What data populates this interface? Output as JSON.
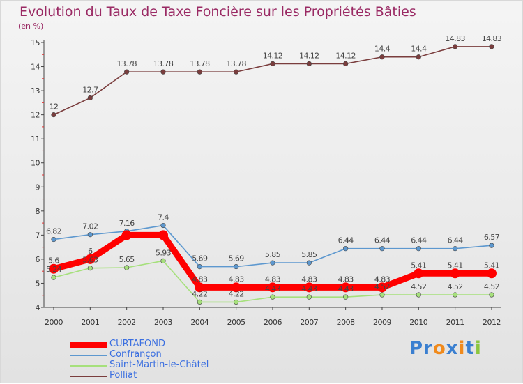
{
  "chart_data": {
    "type": "line",
    "title": "Evolution du Taux de Taxe Foncière sur les Propriétés Bâties",
    "ylabel": "(en %)",
    "xlabel": "",
    "ylim": [
      4,
      15
    ],
    "yticks": [
      "4",
      "5",
      "6",
      "7",
      "8",
      "9",
      "10",
      "11",
      "12",
      "13",
      "14",
      "15"
    ],
    "categories": [
      "2000",
      "2001",
      "2002",
      "2003",
      "2004",
      "2005",
      "2006",
      "2007",
      "2008",
      "2009",
      "2010",
      "2011",
      "2012"
    ],
    "series": [
      {
        "name": "CURTAFOND",
        "color": "#ff0000",
        "values": [
          5.6,
          6,
          7,
          7,
          4.83,
          4.83,
          4.83,
          4.83,
          4.83,
          4.83,
          5.41,
          5.41,
          5.41
        ],
        "labels": [
          "5.6",
          "6",
          "",
          "",
          "4.83",
          "4.83",
          "4.83",
          "4.83",
          "4.83",
          "4.83",
          "5.41",
          "5.41",
          "5.41"
        ]
      },
      {
        "name": "Confrançon",
        "color": "#5d98cf",
        "values": [
          6.82,
          7.02,
          7.16,
          7.4,
          5.69,
          5.69,
          5.85,
          5.85,
          6.44,
          6.44,
          6.44,
          6.44,
          6.57
        ],
        "labels": [
          "6.82",
          "7.02",
          "7.16",
          "7.4",
          "5.69",
          "5.69",
          "5.85",
          "5.85",
          "6.44",
          "6.44",
          "6.44",
          "6.44",
          "6.57"
        ]
      },
      {
        "name": "Saint-Martin-le-Châtel",
        "color": "#a6e07c",
        "values": [
          5.24,
          5.63,
          5.65,
          5.93,
          4.22,
          4.22,
          4.43,
          4.43,
          4.43,
          4.52,
          4.52,
          4.52,
          4.52
        ],
        "labels": [
          "5.24",
          "5.63",
          "5.65",
          "5.93",
          "4.22",
          "4.22",
          "4.43",
          "4.43",
          "4.43",
          "4.52",
          "4.52",
          "4.52",
          "4.52"
        ]
      },
      {
        "name": "Polliat",
        "color": "#7a3d3d",
        "values": [
          12,
          12.7,
          13.78,
          13.78,
          13.78,
          13.78,
          14.12,
          14.12,
          14.12,
          14.4,
          14.4,
          14.83,
          14.83
        ],
        "labels": [
          "12",
          "12.7",
          "13.78",
          "13.78",
          "13.78",
          "13.78",
          "14.12",
          "14.12",
          "14.12",
          "14.4",
          "14.4",
          "14.83",
          "14.83"
        ]
      }
    ],
    "legend_position": "bottom-left",
    "grid": false
  },
  "logo": {
    "text": "Proxiti",
    "letters": [
      {
        "ch": "P",
        "color": "#3a7fd0"
      },
      {
        "ch": "r",
        "color": "#3a7fd0"
      },
      {
        "ch": "o",
        "color": "#f08a1c"
      },
      {
        "ch": "x",
        "color": "#3a7fd0"
      },
      {
        "ch": "i",
        "color": "#f08a1c"
      },
      {
        "ch": "t",
        "color": "#3a7fd0"
      },
      {
        "ch": "i",
        "color": "#8cc63f"
      }
    ]
  }
}
